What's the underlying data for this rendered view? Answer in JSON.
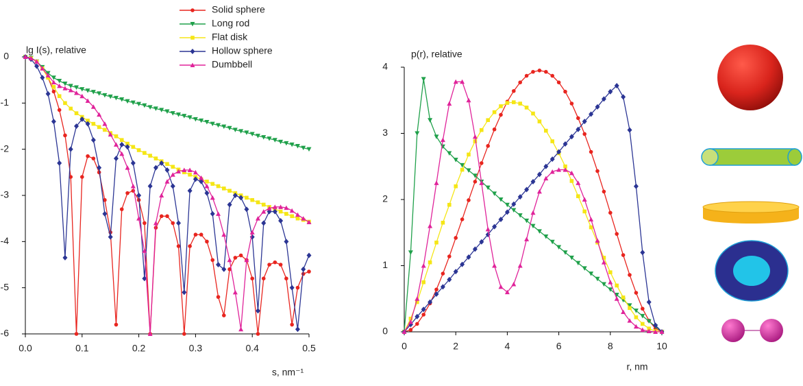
{
  "chart_data": [
    {
      "type": "line",
      "title": null,
      "y_label": "lg I(s), relative",
      "x_label": "s, nm⁻¹",
      "x": [
        0,
        0.01,
        0.02,
        0.03,
        0.04,
        0.05,
        0.06,
        0.07,
        0.08,
        0.09,
        0.1,
        0.11,
        0.12,
        0.13,
        0.14,
        0.15,
        0.16,
        0.17,
        0.18,
        0.19,
        0.2,
        0.21,
        0.22,
        0.23,
        0.24,
        0.25,
        0.26,
        0.27,
        0.28,
        0.29,
        0.3,
        0.31,
        0.32,
        0.33,
        0.34,
        0.35,
        0.36,
        0.37,
        0.38,
        0.39,
        0.4,
        0.41,
        0.42,
        0.43,
        0.44,
        0.45,
        0.46,
        0.47,
        0.48,
        0.49,
        0.5
      ],
      "xlim": [
        0,
        0.5
      ],
      "xticks": [
        {
          "value": 0,
          "label": "0.0"
        },
        0.1,
        0.2,
        0.3,
        0.4,
        0.5
      ],
      "ylim": [
        -6,
        0
      ],
      "yticks": [
        0,
        -1,
        -2,
        -3,
        -4,
        -5,
        -6
      ],
      "legend": "top-right",
      "series": [
        {
          "name": "Solid sphere",
          "color": "#e8251f",
          "marker": "circle",
          "values": [
            0,
            -0.02,
            -0.1,
            -0.25,
            -0.45,
            -0.75,
            -1.15,
            -1.7,
            -2.6,
            -6,
            -2.6,
            -2.15,
            -2.2,
            -2.5,
            -3.1,
            -3.8,
            -5.8,
            -3.3,
            -2.95,
            -2.9,
            -3.1,
            -3.6,
            -6,
            -3.7,
            -3.45,
            -3.45,
            -3.6,
            -4.1,
            -6,
            -4.1,
            -3.85,
            -3.85,
            -4.0,
            -4.4,
            -5.2,
            -5.6,
            -4.6,
            -4.35,
            -4.3,
            -4.4,
            -4.8,
            -6,
            -4.8,
            -4.5,
            -4.45,
            -4.5,
            -4.8,
            -5.8,
            -5.0,
            -4.7,
            -4.65
          ]
        },
        {
          "name": "Long rod",
          "color": "#1fa04a",
          "marker": "tri-down",
          "values": [
            0,
            -0.02,
            -0.1,
            -0.22,
            -0.35,
            -0.45,
            -0.52,
            -0.58,
            -0.63,
            -0.66,
            -0.7,
            -0.73,
            -0.76,
            -0.79,
            -0.83,
            -0.86,
            -0.89,
            -0.92,
            -0.96,
            -0.99,
            -1.02,
            -1.05,
            -1.09,
            -1.12,
            -1.15,
            -1.18,
            -1.22,
            -1.25,
            -1.28,
            -1.31,
            -1.35,
            -1.38,
            -1.41,
            -1.45,
            -1.48,
            -1.51,
            -1.54,
            -1.58,
            -1.61,
            -1.64,
            -1.67,
            -1.71,
            -1.74,
            -1.77,
            -1.8,
            -1.84,
            -1.87,
            -1.9,
            -1.93,
            -1.97,
            -2.0
          ]
        },
        {
          "name": "Flat disk",
          "color": "#f5e616",
          "marker": "square",
          "values": [
            0,
            -0.03,
            -0.1,
            -0.25,
            -0.45,
            -0.65,
            -0.85,
            -1.0,
            -1.12,
            -1.22,
            -1.3,
            -1.38,
            -1.45,
            -1.52,
            -1.58,
            -1.65,
            -1.72,
            -1.8,
            -1.88,
            -1.95,
            -2.02,
            -2.08,
            -2.14,
            -2.2,
            -2.26,
            -2.32,
            -2.38,
            -2.44,
            -2.5,
            -2.55,
            -2.6,
            -2.65,
            -2.7,
            -2.75,
            -2.8,
            -2.85,
            -2.9,
            -2.95,
            -3.0,
            -3.05,
            -3.1,
            -3.15,
            -3.2,
            -3.25,
            -3.3,
            -3.35,
            -3.4,
            -3.45,
            -3.5,
            -3.53,
            -3.57
          ]
        },
        {
          "name": "Hollow sphere",
          "color": "#2b3594",
          "marker": "diamond",
          "values": [
            0,
            -0.05,
            -0.2,
            -0.45,
            -0.8,
            -1.4,
            -2.3,
            -4.35,
            -2.0,
            -1.5,
            -1.35,
            -1.45,
            -1.8,
            -2.4,
            -3.4,
            -3.9,
            -2.2,
            -1.9,
            -1.95,
            -2.3,
            -3.0,
            -4.8,
            -2.8,
            -2.4,
            -2.3,
            -2.45,
            -2.8,
            -3.6,
            -5.1,
            -2.9,
            -2.65,
            -2.7,
            -2.95,
            -3.4,
            -4.5,
            -4.6,
            -3.2,
            -3.0,
            -3.05,
            -3.3,
            -3.9,
            -5.5,
            -3.6,
            -3.35,
            -3.35,
            -3.55,
            -4.0,
            -5.0,
            -5.9,
            -4.6,
            -4.3
          ]
        },
        {
          "name": "Dumbbell",
          "color": "#e0239a",
          "marker": "tri-up",
          "values": [
            0,
            -0.03,
            -0.1,
            -0.25,
            -0.4,
            -0.55,
            -0.63,
            -0.68,
            -0.72,
            -0.78,
            -0.85,
            -0.95,
            -1.08,
            -1.25,
            -1.45,
            -1.68,
            -1.9,
            -2.1,
            -2.4,
            -2.8,
            -3.5,
            -4.2,
            -6,
            -3.6,
            -3.0,
            -2.7,
            -2.55,
            -2.48,
            -2.45,
            -2.45,
            -2.5,
            -2.62,
            -2.8,
            -3.05,
            -3.4,
            -3.85,
            -4.4,
            -5.1,
            -5.9,
            -4.4,
            -3.8,
            -3.5,
            -3.35,
            -3.28,
            -3.25,
            -3.25,
            -3.27,
            -3.33,
            -3.42,
            -3.5,
            -3.58
          ]
        }
      ]
    },
    {
      "type": "line",
      "title": null,
      "y_label": "p(r), relative",
      "x_label": "r, nm",
      "x": [
        0,
        0.25,
        0.5,
        0.75,
        1,
        1.25,
        1.5,
        1.75,
        2,
        2.25,
        2.5,
        2.75,
        3,
        3.25,
        3.5,
        3.75,
        4,
        4.25,
        4.5,
        4.75,
        5,
        5.25,
        5.5,
        5.75,
        6,
        6.25,
        6.5,
        6.75,
        7,
        7.25,
        7.5,
        7.75,
        8,
        8.25,
        8.5,
        8.75,
        9,
        9.25,
        9.5,
        9.75,
        10
      ],
      "xlim": [
        0,
        10
      ],
      "xticks": [
        0,
        2,
        4,
        6,
        8,
        10
      ],
      "ylim": [
        0,
        4
      ],
      "yticks": [
        0,
        1,
        2,
        3,
        4
      ],
      "series": [
        {
          "name": "Solid sphere",
          "color": "#e8251f",
          "marker": "circle",
          "values": [
            0,
            0.03,
            0.12,
            0.26,
            0.43,
            0.64,
            0.88,
            1.14,
            1.42,
            1.7,
            1.99,
            2.27,
            2.55,
            2.81,
            3.06,
            3.28,
            3.48,
            3.64,
            3.77,
            3.87,
            3.93,
            3.95,
            3.93,
            3.87,
            3.77,
            3.63,
            3.45,
            3.23,
            2.99,
            2.72,
            2.43,
            2.12,
            1.8,
            1.48,
            1.16,
            0.86,
            0.59,
            0.35,
            0.17,
            0.05,
            0
          ]
        },
        {
          "name": "Long rod",
          "color": "#1fa04a",
          "marker": "tri-down",
          "values": [
            0,
            1.2,
            3.0,
            3.82,
            3.2,
            2.95,
            2.8,
            2.7,
            2.6,
            2.52,
            2.44,
            2.36,
            2.27,
            2.18,
            2.09,
            2.0,
            1.92,
            1.84,
            1.76,
            1.68,
            1.6,
            1.52,
            1.44,
            1.36,
            1.28,
            1.2,
            1.12,
            1.04,
            0.96,
            0.88,
            0.8,
            0.72,
            0.64,
            0.56,
            0.48,
            0.4,
            0.32,
            0.24,
            0.16,
            0.08,
            0
          ]
        },
        {
          "name": "Flat disk",
          "color": "#f5e616",
          "marker": "square",
          "values": [
            0,
            0.2,
            0.45,
            0.75,
            1.05,
            1.35,
            1.65,
            1.92,
            2.2,
            2.45,
            2.68,
            2.88,
            3.05,
            3.2,
            3.32,
            3.41,
            3.46,
            3.47,
            3.45,
            3.39,
            3.3,
            3.18,
            3.04,
            2.88,
            2.7,
            2.5,
            2.28,
            2.05,
            1.82,
            1.58,
            1.35,
            1.12,
            0.9,
            0.7,
            0.52,
            0.36,
            0.22,
            0.12,
            0.05,
            0.01,
            0
          ]
        },
        {
          "name": "Hollow sphere",
          "color": "#2b3594",
          "marker": "diamond",
          "values": [
            0,
            0.11,
            0.23,
            0.34,
            0.45,
            0.57,
            0.68,
            0.79,
            0.91,
            1.02,
            1.13,
            1.25,
            1.36,
            1.47,
            1.59,
            1.7,
            1.81,
            1.93,
            2.04,
            2.15,
            2.27,
            2.38,
            2.5,
            2.61,
            2.72,
            2.84,
            2.95,
            3.06,
            3.18,
            3.29,
            3.4,
            3.52,
            3.63,
            3.72,
            3.55,
            3.05,
            2.2,
            1.2,
            0.45,
            0.1,
            0
          ]
        },
        {
          "name": "Dumbbell",
          "color": "#e0239a",
          "marker": "tri-up",
          "values": [
            0,
            0.15,
            0.5,
            1.0,
            1.6,
            2.25,
            2.9,
            3.45,
            3.78,
            3.78,
            3.5,
            2.95,
            2.25,
            1.55,
            1.0,
            0.68,
            0.6,
            0.72,
            1.0,
            1.4,
            1.8,
            2.12,
            2.32,
            2.42,
            2.45,
            2.45,
            2.4,
            2.25,
            2.0,
            1.7,
            1.38,
            1.05,
            0.75,
            0.5,
            0.3,
            0.17,
            0.08,
            0.03,
            0.01,
            0,
            0
          ]
        }
      ]
    }
  ]
}
